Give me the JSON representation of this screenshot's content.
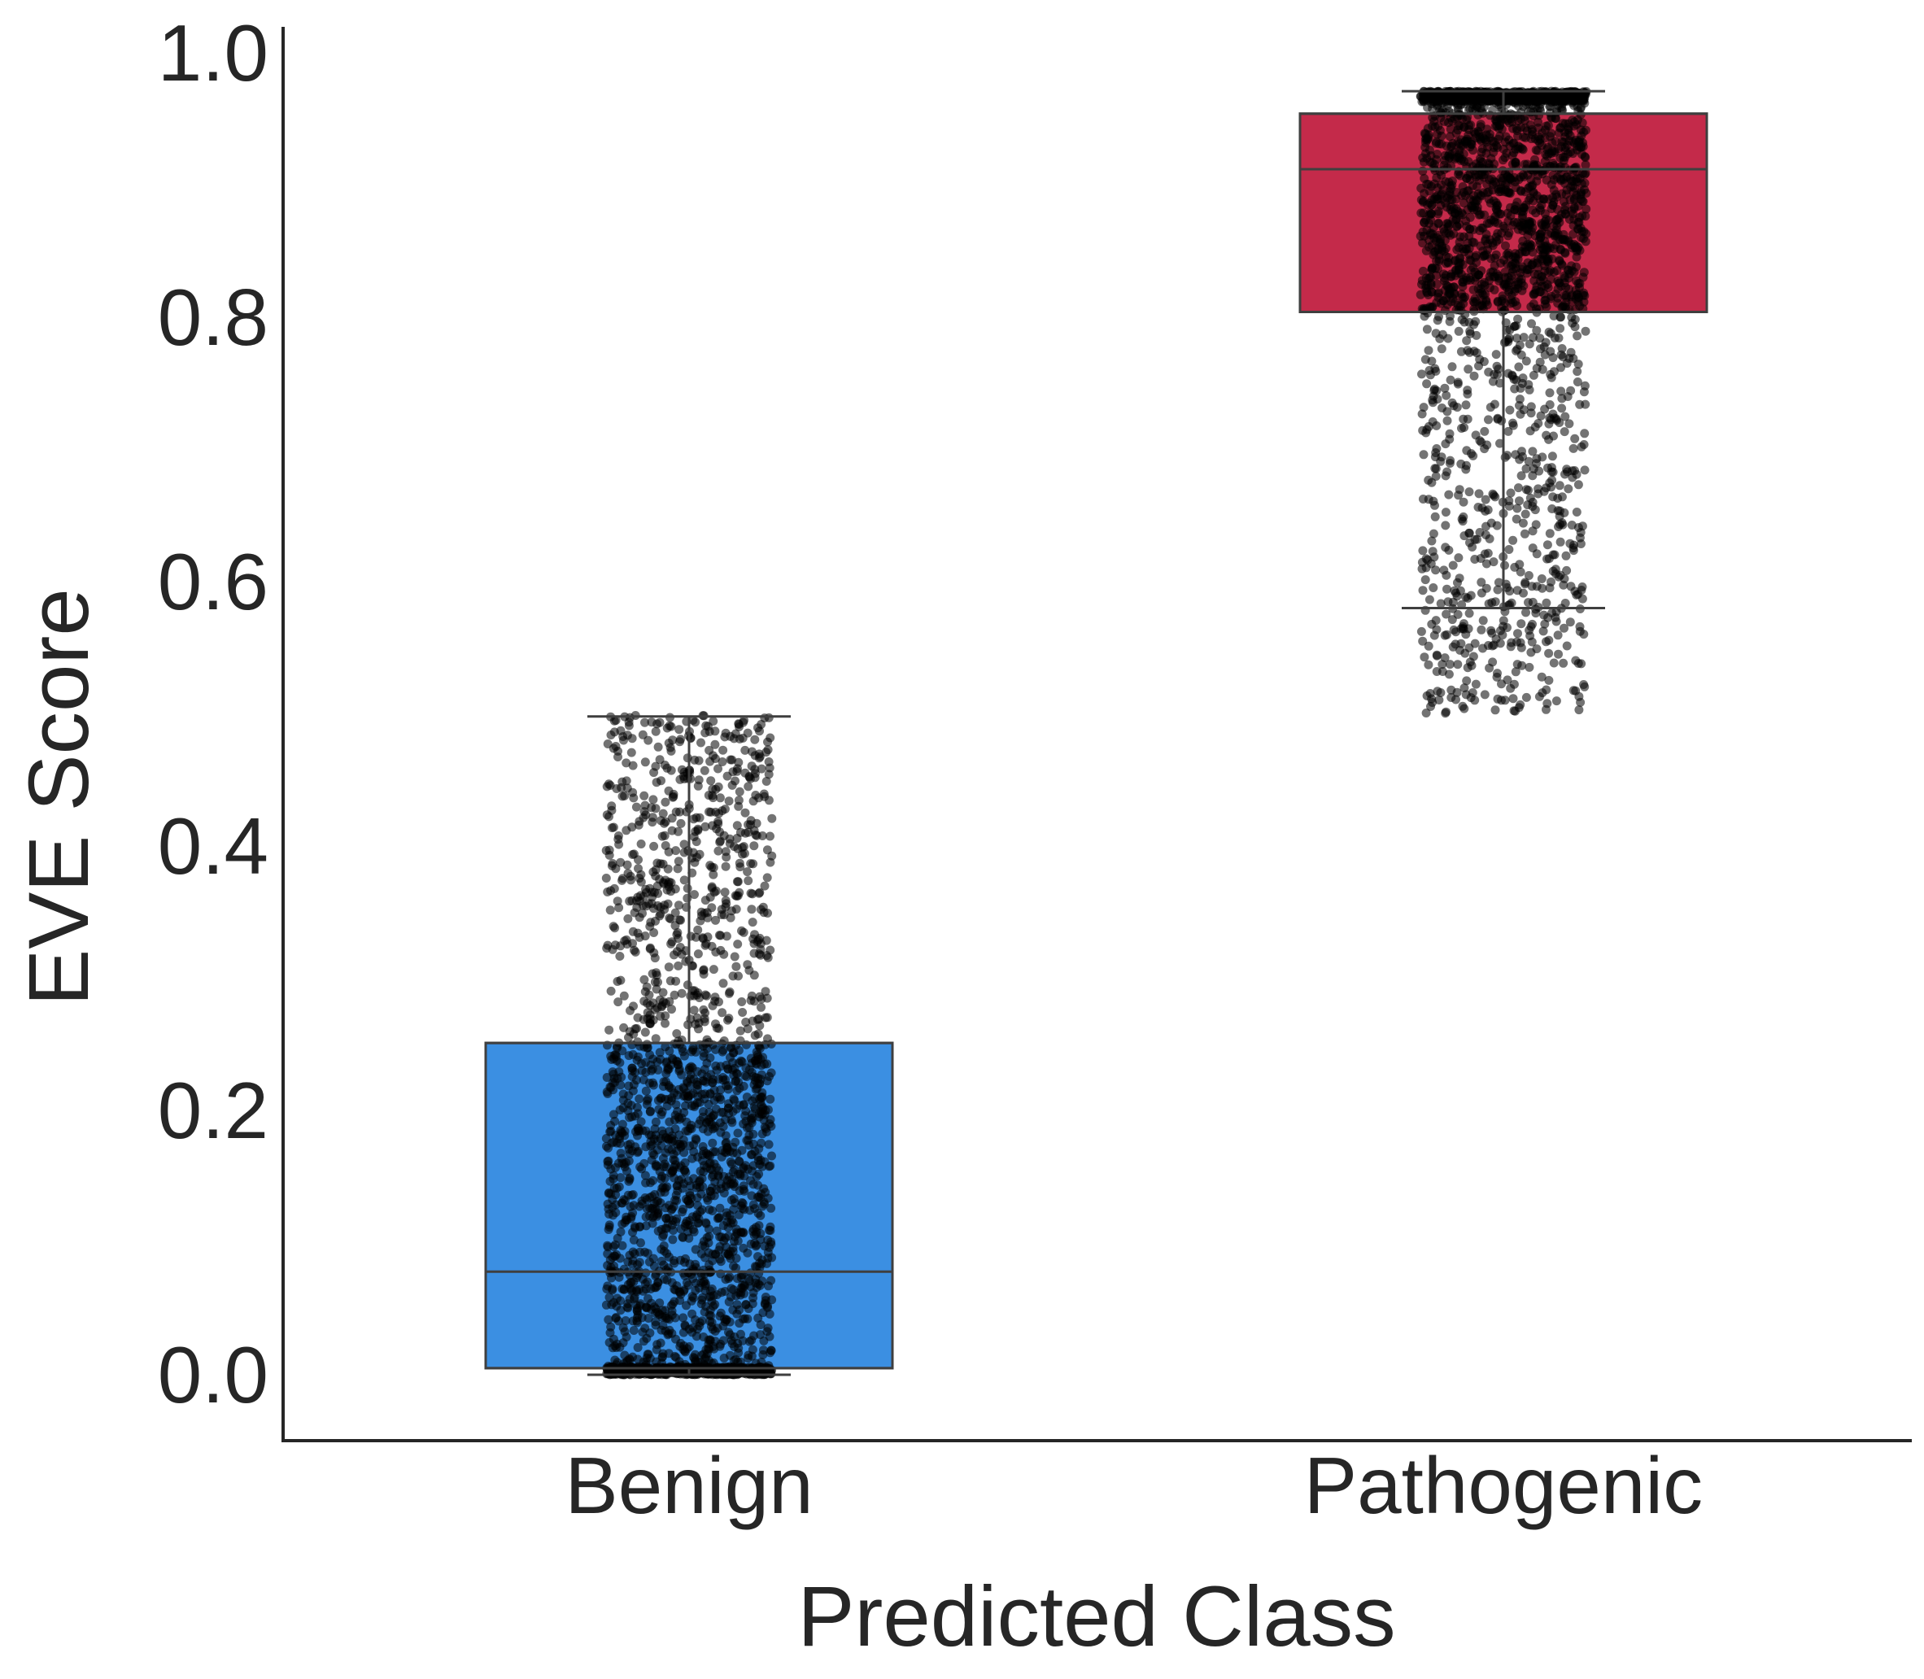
{
  "chart_data": {
    "type": "box",
    "xlabel": "Predicted Class",
    "ylabel": "EVE Score",
    "ylim": [
      -0.08,
      1.02
    ],
    "yticks": [
      "0.0",
      "0.2",
      "0.4",
      "0.6",
      "0.8",
      "1.0"
    ],
    "grid": false,
    "legend": "none",
    "categories": [
      "Benign",
      "Pathogenic"
    ],
    "series": [
      {
        "category": "Benign",
        "color": "#3b8fe2",
        "whisker_low": 0.0,
        "q1": 0.005,
        "median": 0.078,
        "q3": 0.251,
        "whisker_high": 0.498,
        "point_range": [
          0.0,
          0.5
        ]
      },
      {
        "category": "Pathogenic",
        "color": "#c42a4a",
        "whisker_low": 0.58,
        "q1": 0.804,
        "median": 0.912,
        "q3": 0.954,
        "whisker_high": 0.971,
        "point_range": [
          0.5,
          0.971
        ]
      }
    ],
    "overlay": {
      "type": "strip",
      "color": "#000000",
      "opacity": 0.55
    }
  }
}
